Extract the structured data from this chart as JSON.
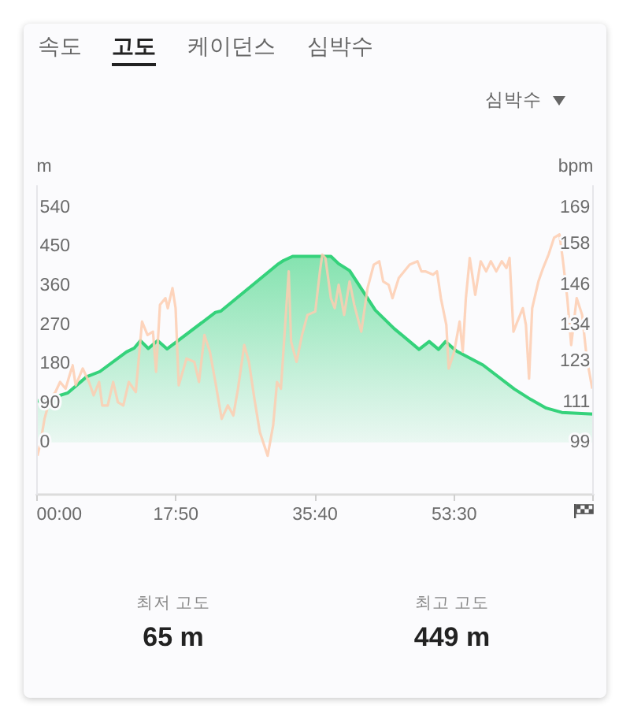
{
  "chart_data": {
    "type": "area",
    "title": "고도",
    "ylabel": "m",
    "y2label": "bpm",
    "annotations": [
      "속도",
      "케이던스",
      "심박수",
      "심박수",
      "최저 고도",
      "65 m",
      "최고 고도",
      "449 m"
    ],
    "xlim": [
      0,
      71.333
    ],
    "xticks": [
      {
        "value": 0,
        "label": "00:00"
      },
      {
        "value": 17.833,
        "label": "17:50"
      },
      {
        "value": 35.667,
        "label": "35:40"
      },
      {
        "value": 53.5,
        "label": "53:30"
      },
      {
        "value": 71.333,
        "label": null
      }
    ],
    "ylim": [
      -120,
      590
    ],
    "yticks": [
      0,
      90,
      180,
      270,
      360,
      450,
      540
    ],
    "y2lim": [
      83.4,
      175.5
    ],
    "y2ticks": [
      99,
      111,
      123,
      134,
      146,
      158,
      169
    ],
    "marker": "none",
    "line_style": "solid",
    "series": [
      {
        "color": "#35d27b",
        "x": [
          0,
          2.4,
          4.0,
          6.4,
          8.1,
          11.5,
          12.5,
          13.3,
          14.3,
          15.5,
          16.7,
          22.9,
          23.6,
          31.0,
          31.6,
          32.8,
          37.7,
          38.7,
          40.1,
          43.4,
          45.8,
          49.0,
          50.3,
          51.5,
          52.4,
          53.8,
          57.2,
          61.2,
          63.3,
          65.3,
          67.3,
          71.333
        ],
        "values": [
          95,
          105,
          114,
          151,
          163,
          208,
          217,
          234,
          216,
          234,
          215,
          299,
          302,
          411,
          418,
          428,
          428,
          411,
          395,
          304,
          262,
          214,
          232,
          214,
          232,
          210,
          178,
          123,
          99,
          79,
          69,
          65
        ]
      },
      {
        "type": "line",
        "axis": "y2",
        "color": "#fdcdb0",
        "x": [
          0.1,
          0.5,
          1.0,
          1.7,
          2.4,
          3.0,
          3.7,
          4.6,
          5.0,
          5.9,
          6.7,
          7.3,
          8.0,
          8.4,
          9.1,
          9.8,
          10.4,
          11.1,
          11.8,
          12.7,
          13.5,
          14.2,
          14.9,
          15.3,
          15.8,
          16.5,
          16.8,
          17.4,
          17.8,
          18.2,
          19.2,
          20.2,
          20.8,
          21.5,
          22.2,
          22.9,
          23.7,
          24.5,
          25.2,
          25.8,
          26.6,
          27.2,
          27.9,
          28.6,
          29.6,
          30.3,
          30.8,
          31.3,
          32.3,
          32.6,
          33.3,
          34.0,
          34.7,
          35.7,
          36.3,
          36.6,
          37.0,
          37.7,
          38.2,
          38.7,
          39.4,
          40.1,
          40.7,
          41.6,
          42.4,
          43.2,
          43.9,
          44.4,
          45.1,
          45.6,
          46.4,
          47.8,
          48.8,
          49.3,
          49.8,
          50.8,
          51.3,
          51.8,
          52.5,
          52.8,
          53.5,
          54.2,
          54.6,
          55.0,
          55.5,
          56.2,
          56.9,
          57.6,
          58.2,
          58.9,
          59.6,
          60.2,
          60.6,
          61.1,
          61.6,
          62.3,
          62.7,
          63.1,
          63.5,
          64.3,
          64.9,
          65.6,
          66.3,
          67.0,
          67.4,
          68.0,
          68.5,
          69.2,
          69.9,
          70.5,
          71.2
        ],
        "values": [
          95,
          99,
          106,
          112,
          114,
          117,
          115,
          122,
          116,
          121,
          117,
          113,
          117,
          110,
          110,
          117,
          111,
          110,
          117,
          114,
          135,
          131,
          132,
          120,
          140,
          142,
          139,
          145,
          139,
          116,
          124,
          123,
          117,
          131,
          126,
          117,
          106,
          110,
          107,
          115,
          128,
          123,
          112,
          102,
          95,
          104,
          117,
          115,
          150,
          129,
          123,
          131,
          137,
          138,
          150,
          155,
          154,
          142,
          139,
          146,
          137,
          147,
          140,
          132,
          145,
          152,
          153,
          147,
          146,
          142,
          148,
          152,
          153,
          150,
          150,
          149,
          150,
          142,
          134,
          121,
          126,
          135,
          126,
          142,
          154,
          143,
          153,
          150,
          153,
          150,
          153,
          151,
          154,
          132,
          135,
          139,
          134,
          118,
          139,
          147,
          151,
          155,
          160,
          161,
          154,
          142,
          128,
          142,
          137,
          124,
          115
        ]
      }
    ]
  }
}
